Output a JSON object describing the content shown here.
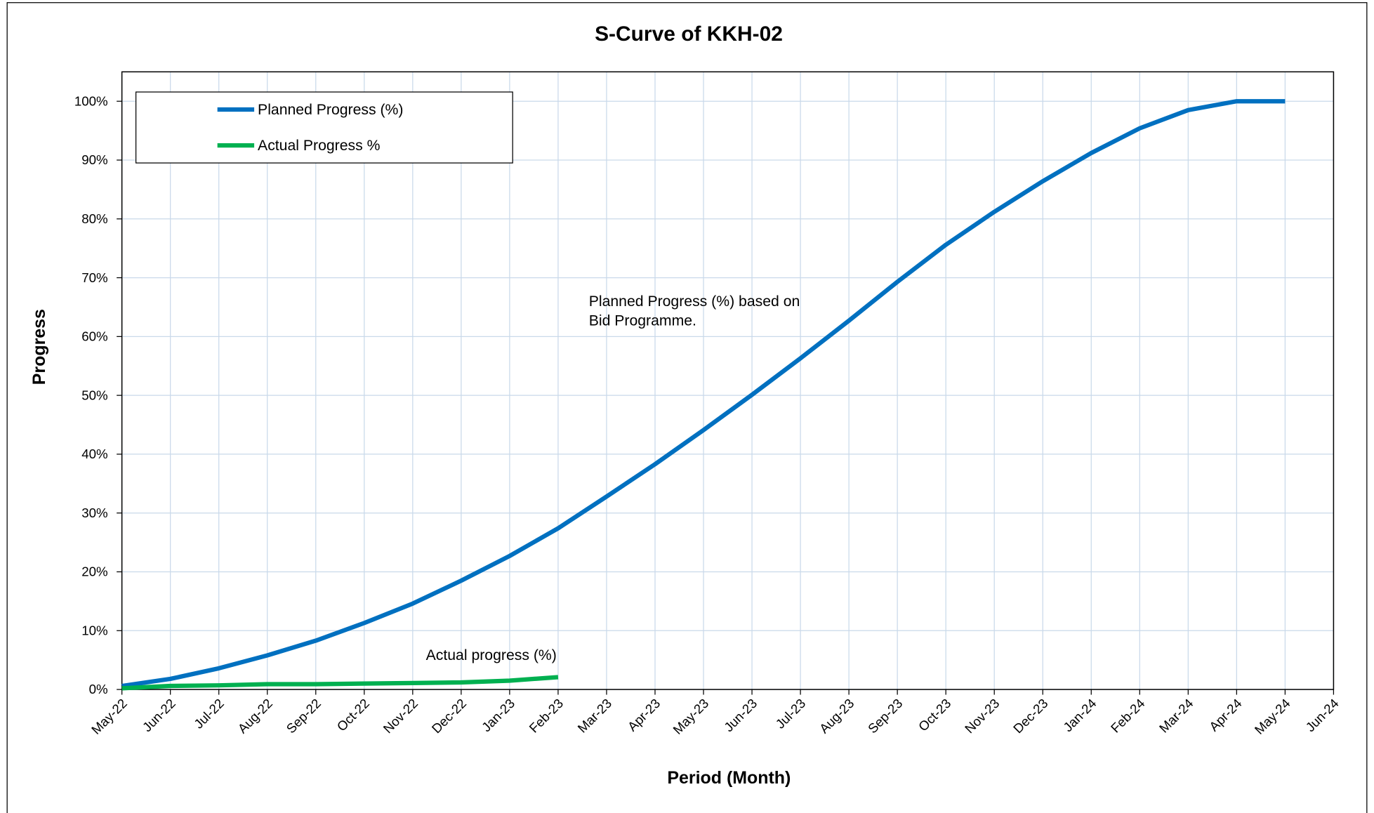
{
  "chart_data": {
    "type": "line",
    "title": "S-Curve of  KKH-02",
    "x_label": "Period (Month)",
    "y_label": "Progress",
    "categories": [
      "May-22",
      "Jun-22",
      "Jul-22",
      "Aug-22",
      "Sep-22",
      "Oct-22",
      "Nov-22",
      "Dec-22",
      "Jan-23",
      "Feb-23",
      "Mar-23",
      "Apr-23",
      "May-23",
      "Jun-23",
      "Jul-23",
      "Aug-23",
      "Sep-23",
      "Oct-23",
      "Nov-23",
      "Dec-23",
      "Jan-24",
      "Feb-24",
      "Mar-24",
      "Apr-24",
      "May-24",
      "Jun-24"
    ],
    "series": [
      {
        "name": "Planned  Progress (%)",
        "color": "#0070c0",
        "values": [
          0.6,
          1.8,
          3.6,
          5.8,
          8.3,
          11.3,
          14.6,
          18.5,
          22.7,
          27.4,
          32.8,
          38.3,
          44.1,
          50.1,
          56.3,
          62.7,
          69.3,
          75.6,
          81.2,
          86.4,
          91.2,
          95.4,
          98.5,
          100,
          100,
          null
        ]
      },
      {
        "name": "Actual Progress %",
        "color": "#00b050",
        "values": [
          0.2,
          0.6,
          0.7,
          0.9,
          0.9,
          1.0,
          1.1,
          1.2,
          1.5,
          2.1,
          null,
          null,
          null,
          null,
          null,
          null,
          null,
          null,
          null,
          null,
          null,
          null,
          null,
          null,
          null,
          null
        ]
      }
    ],
    "ylim": [
      0,
      105
    ],
    "yticks": [
      {
        "value": 0,
        "label": "0%"
      },
      {
        "value": 10,
        "label": "10%"
      },
      {
        "value": 20,
        "label": "20%"
      },
      {
        "value": 30,
        "label": "30%"
      },
      {
        "value": 40,
        "label": "40%"
      },
      {
        "value": 50,
        "label": "50%"
      },
      {
        "value": 60,
        "label": "60%"
      },
      {
        "value": 70,
        "label": "70%"
      },
      {
        "value": 80,
        "label": "80%"
      },
      {
        "value": 90,
        "label": "90%"
      },
      {
        "value": 100,
        "label": "100%"
      }
    ],
    "grid": true,
    "legend": "upper left",
    "annotations": [
      {
        "lines": [
          "Planned Progress (%) based on",
          "Bid Programme."
        ]
      },
      {
        "lines": [
          "Actual progress (%)"
        ]
      }
    ]
  }
}
